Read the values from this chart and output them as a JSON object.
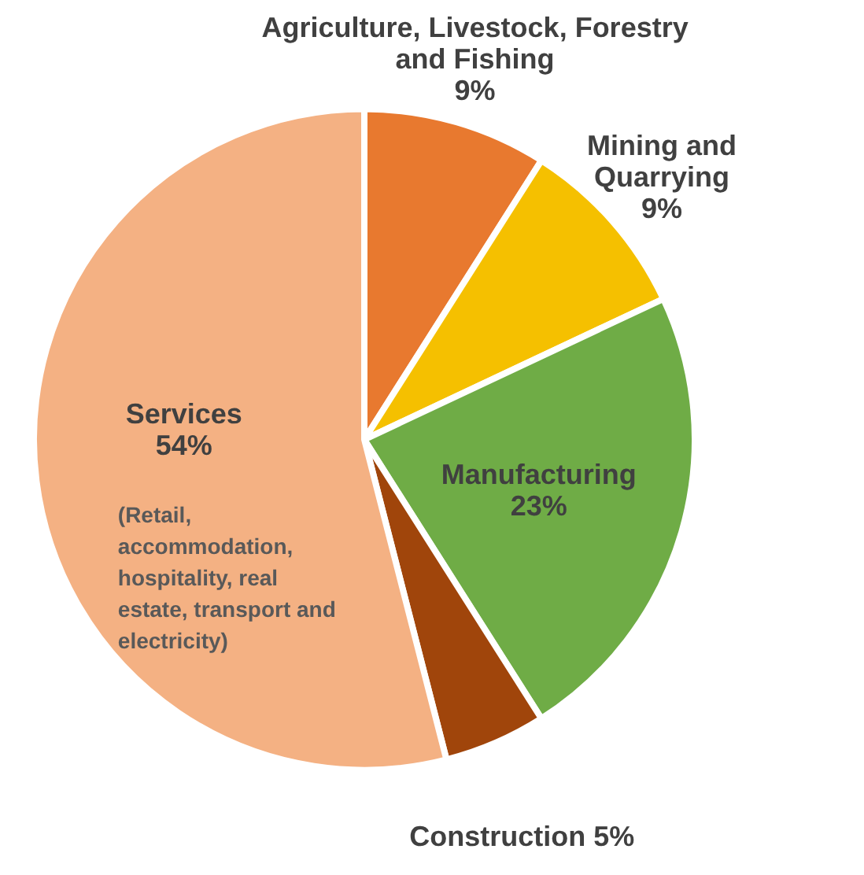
{
  "chart_data": {
    "type": "pie",
    "categories": [
      "Agriculture, Livestock, Forestry and Fishing",
      "Mining and Quarrying",
      "Manufacturing",
      "Construction",
      "Services"
    ],
    "values": [
      9,
      9,
      23,
      5,
      54
    ],
    "colors": [
      "#e8792f",
      "#f5c000",
      "#6fac46",
      "#a0450b",
      "#f4b183"
    ],
    "value_labels": [
      "9%",
      "9%",
      "23%",
      "5%",
      "54%"
    ],
    "annotations": [
      "(Retail, accommodation, hospitality, real estate, transport and electricity)"
    ]
  }
}
